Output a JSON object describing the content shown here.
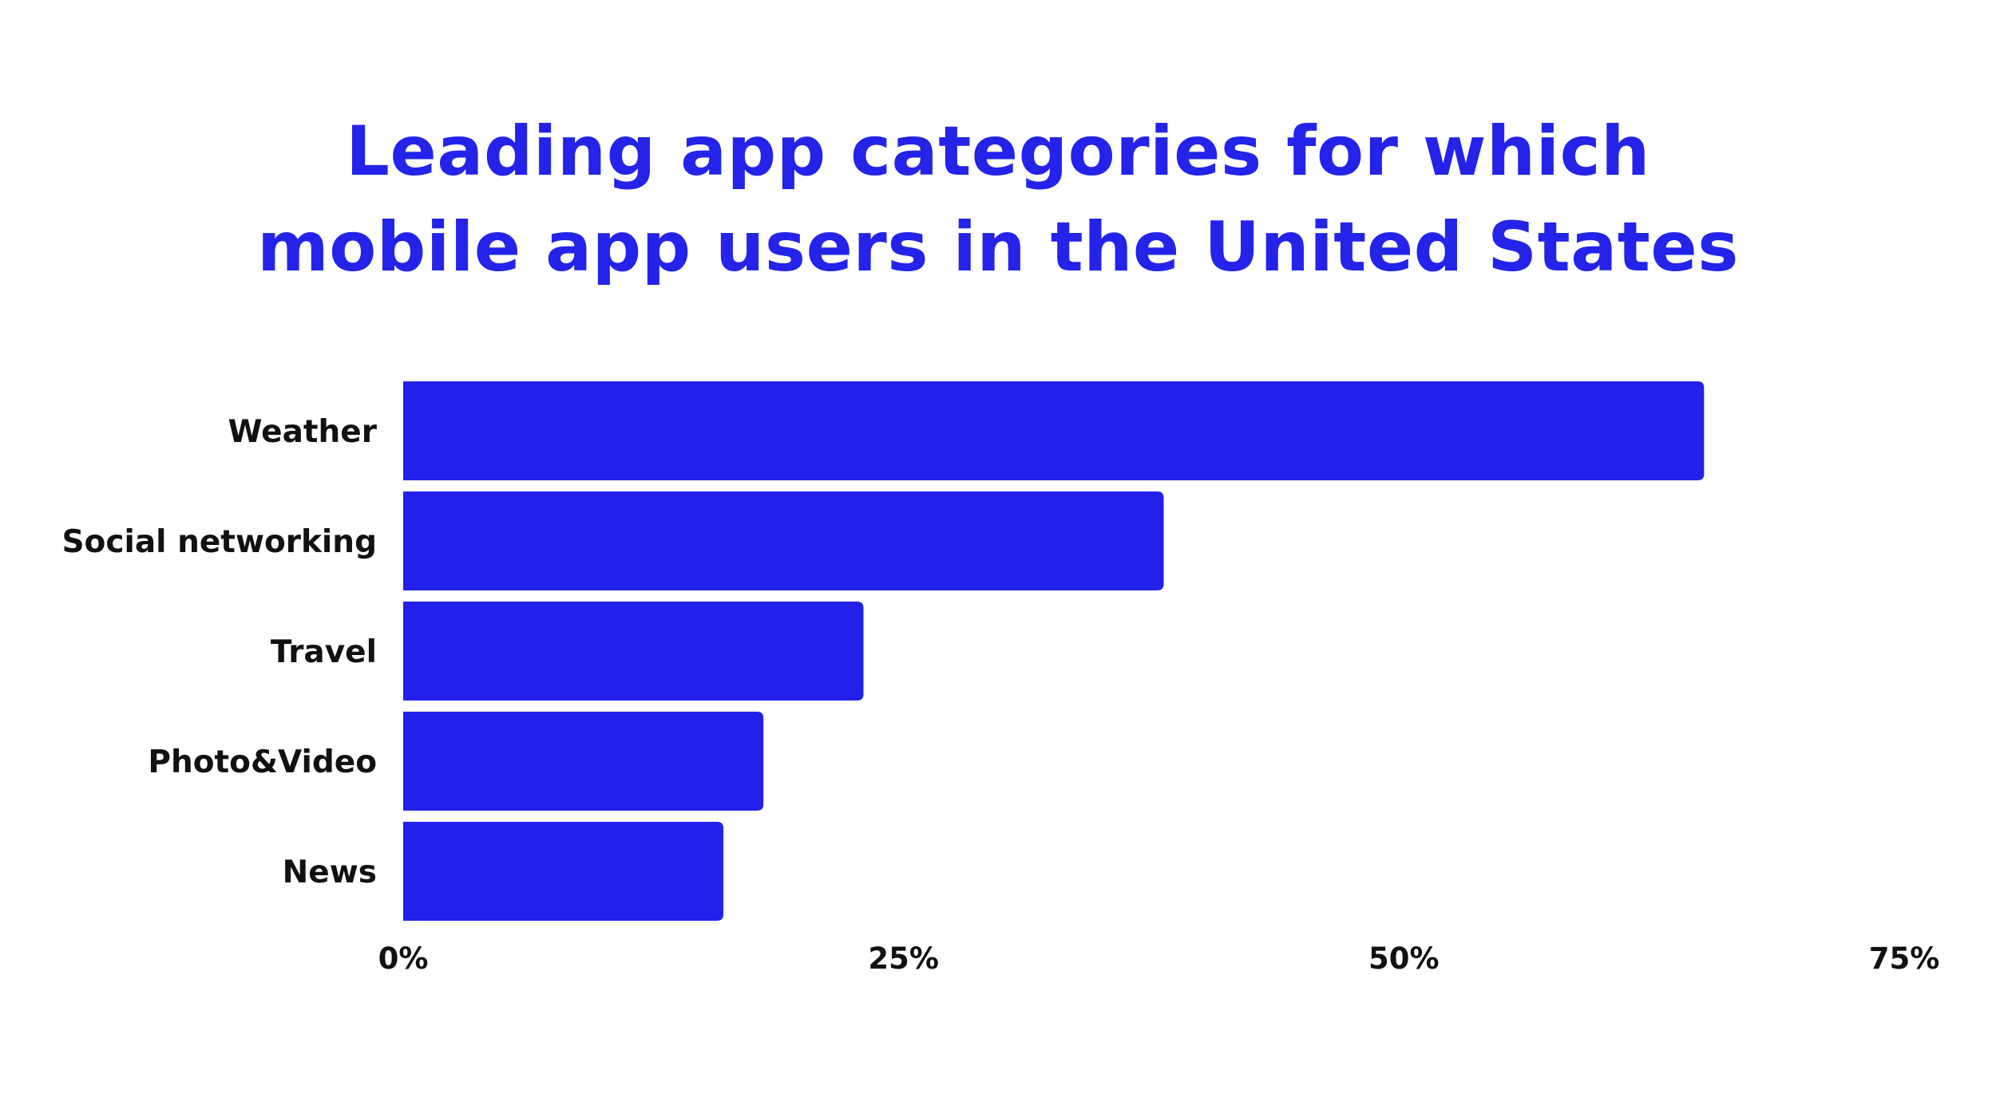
{
  "colors": {
    "accent": "#2323ea",
    "bar": "#2121ea",
    "text": "#111111",
    "background": "#ffffff"
  },
  "chart_data": {
    "type": "bar",
    "orientation": "horizontal",
    "title_lines": [
      "Leading app categories for which",
      "mobile app users in the United States"
    ],
    "title": "Leading app categories for which mobile app users in the United States",
    "categories": [
      "Weather",
      "Social networking",
      "Travel",
      "Photo&Video",
      "News"
    ],
    "values": [
      65,
      38,
      23,
      18,
      16
    ],
    "unit": "%",
    "xlim": [
      0,
      75
    ],
    "ticks": [
      0,
      25,
      50,
      75
    ],
    "tick_labels": [
      "0%",
      "25%",
      "50%",
      "75%"
    ],
    "xlabel": "",
    "ylabel": "",
    "grid": false,
    "legend": "none"
  }
}
